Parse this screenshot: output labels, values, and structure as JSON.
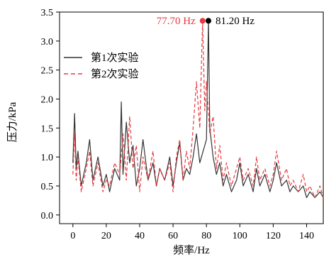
{
  "chart_data": {
    "type": "line",
    "title": "",
    "xlabel": "频率/Hz",
    "ylabel": "压力/kPa",
    "xlim": [
      -8,
      150
    ],
    "ylim": [
      -0.15,
      3.5
    ],
    "xticks": [
      0,
      20,
      40,
      60,
      80,
      100,
      120,
      140
    ],
    "yticks": [
      0.0,
      0.5,
      1.0,
      1.5,
      2.0,
      2.5,
      3.0,
      3.5
    ],
    "xtick_labels": [
      "0",
      "20",
      "40",
      "60",
      "80",
      "100",
      "120",
      "140"
    ],
    "ytick_labels": [
      "0.0",
      "0.5",
      "1.0",
      "1.5",
      "2.0",
      "2.5",
      "3.0",
      "3.5"
    ],
    "legend_position": "upper-left",
    "colors": {
      "series1": "#333333",
      "series2": "#e8393f",
      "annotation1": "#e8393f",
      "annotation2": "#000000"
    },
    "series": [
      {
        "name": "第1次实验",
        "style": "solid",
        "x": [
          0,
          1,
          2,
          3,
          5,
          8,
          10,
          12,
          15,
          18,
          20,
          22,
          25,
          28,
          29,
          30,
          32,
          34,
          36,
          38,
          40,
          42,
          45,
          48,
          50,
          52,
          55,
          58,
          60,
          62,
          64,
          66,
          68,
          70,
          72,
          74,
          76,
          78,
          80,
          81.2,
          82,
          84,
          86,
          88,
          90,
          92,
          95,
          98,
          100,
          102,
          105,
          108,
          110,
          112,
          115,
          118,
          120,
          122,
          125,
          128,
          130,
          132,
          135,
          138,
          140,
          142,
          145,
          148,
          150
        ],
        "values": [
          0.9,
          1.75,
          0.8,
          1.1,
          0.5,
          0.9,
          1.3,
          0.6,
          1.0,
          0.5,
          0.7,
          0.4,
          0.8,
          0.6,
          1.95,
          0.7,
          1.6,
          0.9,
          1.2,
          0.5,
          0.8,
          1.3,
          0.6,
          0.9,
          0.5,
          0.8,
          0.6,
          1.0,
          0.5,
          0.9,
          1.25,
          0.6,
          0.8,
          0.7,
          1.0,
          1.4,
          0.9,
          1.1,
          1.3,
          3.35,
          1.5,
          1.0,
          0.7,
          0.9,
          0.5,
          0.7,
          0.4,
          0.6,
          0.9,
          0.5,
          0.7,
          0.4,
          0.8,
          0.5,
          0.7,
          0.4,
          0.6,
          0.9,
          0.5,
          0.6,
          0.4,
          0.5,
          0.4,
          0.5,
          0.3,
          0.4,
          0.3,
          0.4,
          0.3
        ]
      },
      {
        "name": "第2次实验",
        "style": "dashed",
        "x": [
          0,
          1,
          2,
          3,
          5,
          8,
          10,
          12,
          15,
          18,
          20,
          22,
          25,
          28,
          30,
          32,
          34,
          36,
          38,
          40,
          42,
          45,
          48,
          50,
          52,
          55,
          58,
          60,
          62,
          64,
          66,
          68,
          70,
          72,
          74,
          76,
          77.7,
          79,
          80,
          82,
          84,
          86,
          88,
          90,
          92,
          95,
          98,
          100,
          102,
          105,
          108,
          110,
          112,
          115,
          118,
          120,
          122,
          125,
          128,
          130,
          132,
          135,
          138,
          140,
          142,
          145,
          148,
          150
        ],
        "values": [
          0.7,
          1.4,
          0.6,
          1.0,
          0.4,
          0.8,
          1.1,
          0.5,
          0.9,
          0.4,
          0.6,
          0.5,
          0.9,
          0.7,
          1.4,
          0.6,
          1.7,
          0.8,
          1.2,
          0.4,
          1.0,
          0.6,
          1.1,
          0.5,
          0.8,
          0.6,
          0.9,
          0.4,
          1.0,
          1.3,
          0.6,
          1.1,
          0.8,
          1.5,
          2.3,
          1.5,
          3.35,
          1.8,
          2.3,
          1.4,
          1.7,
          0.8,
          1.2,
          0.6,
          0.9,
          0.5,
          0.8,
          1.0,
          0.6,
          0.8,
          0.5,
          1.0,
          0.6,
          0.8,
          0.5,
          0.7,
          1.1,
          0.6,
          0.8,
          0.5,
          0.6,
          0.4,
          0.7,
          0.4,
          0.5,
          0.3,
          0.5,
          0.3
        ]
      }
    ],
    "annotations": [
      {
        "text": "77.70 Hz",
        "x": 77.7,
        "y": 3.35
      },
      {
        "text": "81.20 Hz",
        "x": 81.2,
        "y": 3.35
      }
    ]
  }
}
